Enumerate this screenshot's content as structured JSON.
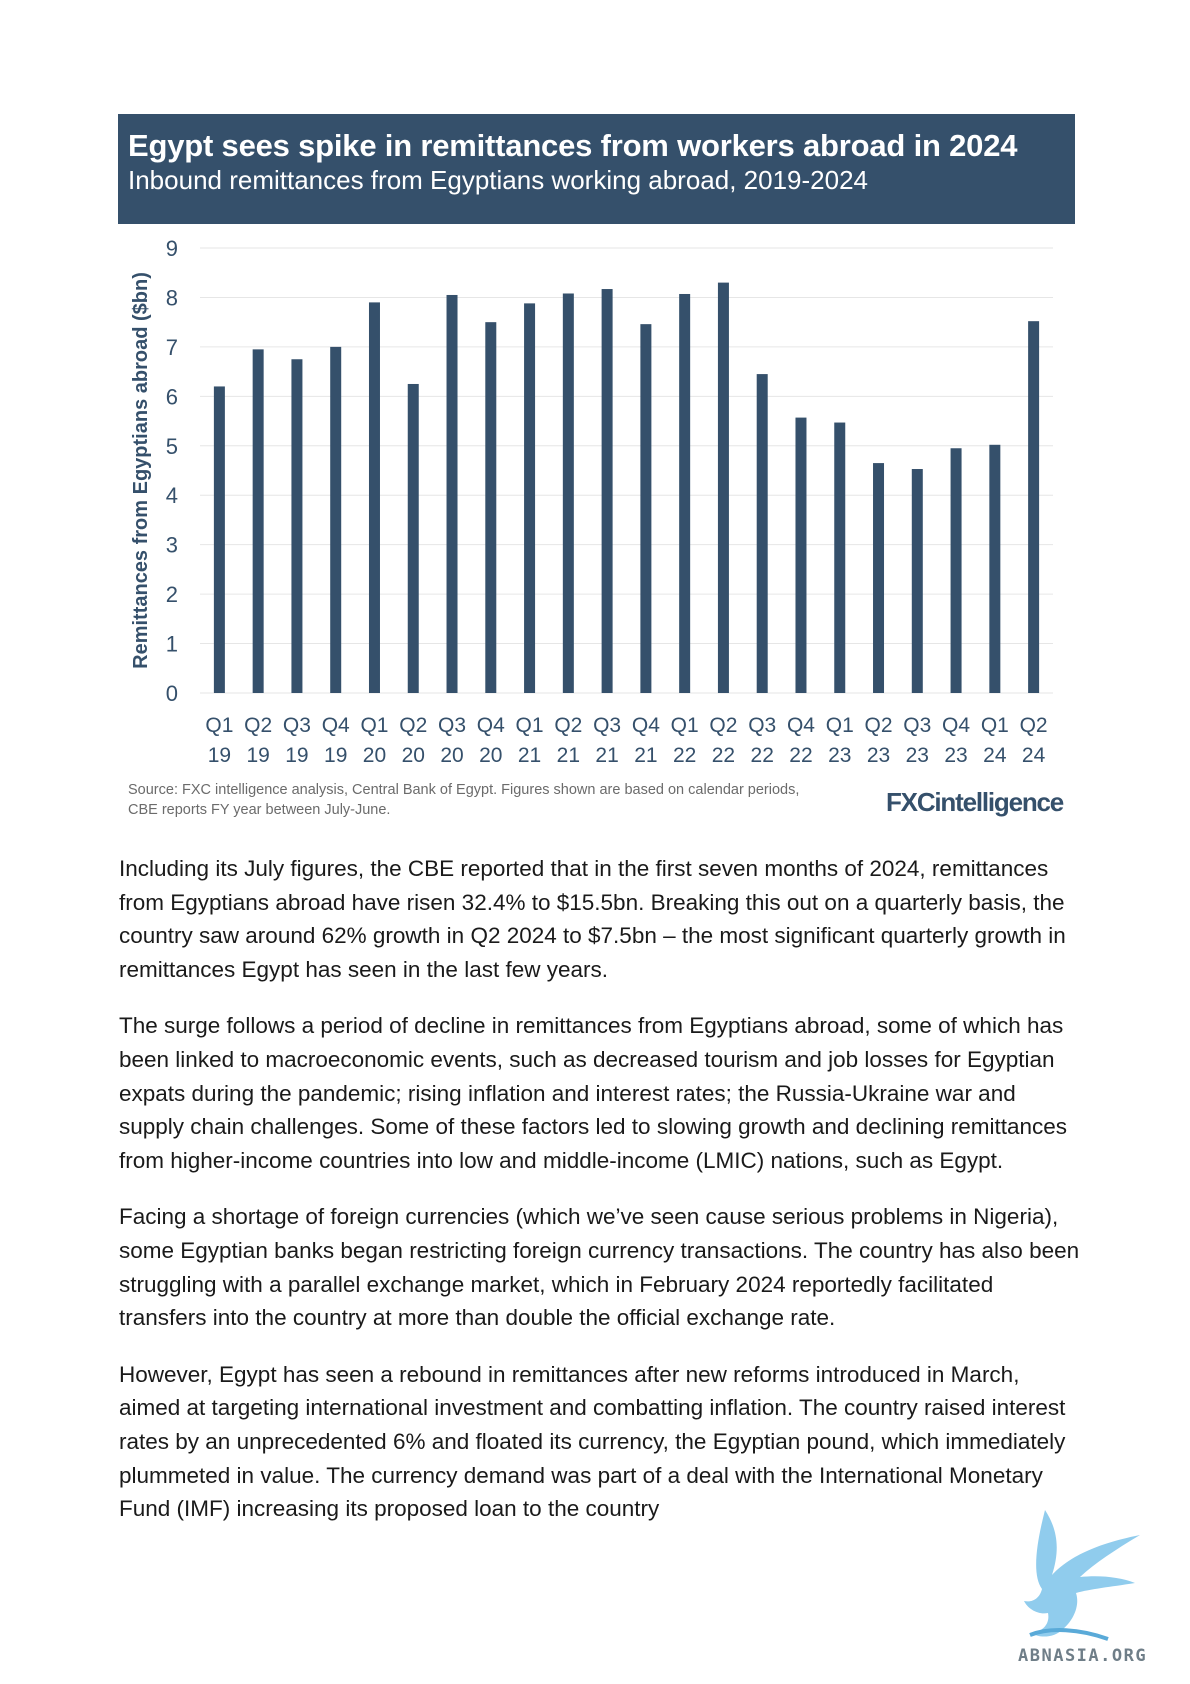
{
  "chart_data": {
    "type": "bar",
    "title": "Egypt sees spike in remittances from workers abroad in 2024",
    "subtitle": "Inbound remittances from Egyptians working abroad, 2019-2024",
    "ylabel": "Remittances from Egyptians abroad ($bn)",
    "xlabel": "",
    "ylim": [
      0,
      9
    ],
    "yticks": [
      0,
      1,
      2,
      3,
      4,
      5,
      6,
      7,
      8,
      9
    ],
    "grid": true,
    "legend": "none",
    "bar_color": "#35506b",
    "categories": [
      [
        "Q1",
        "19"
      ],
      [
        "Q2",
        "19"
      ],
      [
        "Q3",
        "19"
      ],
      [
        "Q4",
        "19"
      ],
      [
        "Q1",
        "20"
      ],
      [
        "Q2",
        "20"
      ],
      [
        "Q3",
        "20"
      ],
      [
        "Q4",
        "20"
      ],
      [
        "Q1",
        "21"
      ],
      [
        "Q2",
        "21"
      ],
      [
        "Q3",
        "21"
      ],
      [
        "Q4",
        "21"
      ],
      [
        "Q1",
        "22"
      ],
      [
        "Q2",
        "22"
      ],
      [
        "Q3",
        "22"
      ],
      [
        "Q4",
        "22"
      ],
      [
        "Q1",
        "23"
      ],
      [
        "Q2",
        "23"
      ],
      [
        "Q3",
        "23"
      ],
      [
        "Q4",
        "23"
      ],
      [
        "Q1",
        "24"
      ],
      [
        "Q2",
        "24"
      ]
    ],
    "values": [
      6.2,
      6.95,
      6.75,
      7.0,
      7.9,
      6.25,
      8.05,
      7.5,
      7.88,
      8.08,
      8.17,
      7.46,
      8.07,
      8.3,
      6.45,
      5.57,
      5.47,
      4.65,
      4.53,
      4.95,
      5.02,
      7.52
    ]
  },
  "source_note": {
    "line1": "Source: FXC intelligence analysis, Central Bank of Egypt. Figures shown are based on calendar periods,",
    "line2": "CBE reports FY year between July-June."
  },
  "brand": {
    "logo_text": "FXCintelligence"
  },
  "article": {
    "paragraphs": [
      "Including its July figures, the CBE reported that in the first seven months of 2024, remittances from Egyptians abroad have risen 32.4% to $15.5bn. Breaking this out on a quarterly basis, the country saw around 62% growth in Q2 2024 to $7.5bn – the most significant quarterly growth in remittances Egypt has seen in the last few years.",
      "The surge follows a period of decline in remittances from Egyptians abroad, some of which has been linked to macroeconomic events, such as decreased tourism and job losses for Egyptian expats during the pandemic; rising inflation and interest rates; the Russia-Ukraine war and supply chain challenges. Some of these factors led to slowing growth and declining remittances from higher-income countries into low and middle-income (LMIC) nations, such as Egypt.",
      "Facing a shortage of foreign currencies (which we’ve seen cause serious problems in Nigeria), some Egyptian banks began restricting foreign currency transactions. The country has also been struggling with a parallel exchange market, which in February 2024 reportedly facilitated transfers into the country at more than double the official exchange rate.",
      "However, Egypt has seen a rebound in remittances after new reforms introduced in March, aimed at targeting international investment and combatting inflation. The country raised interest rates by an unprecedented 6% and floated its currency, the Egyptian pound, which immediately plummeted in value. The currency demand was part of a deal with the International Monetary Fund (IMF) increasing its proposed loan to the country"
    ]
  },
  "watermark": {
    "text": "ABNASIA.ORG"
  }
}
